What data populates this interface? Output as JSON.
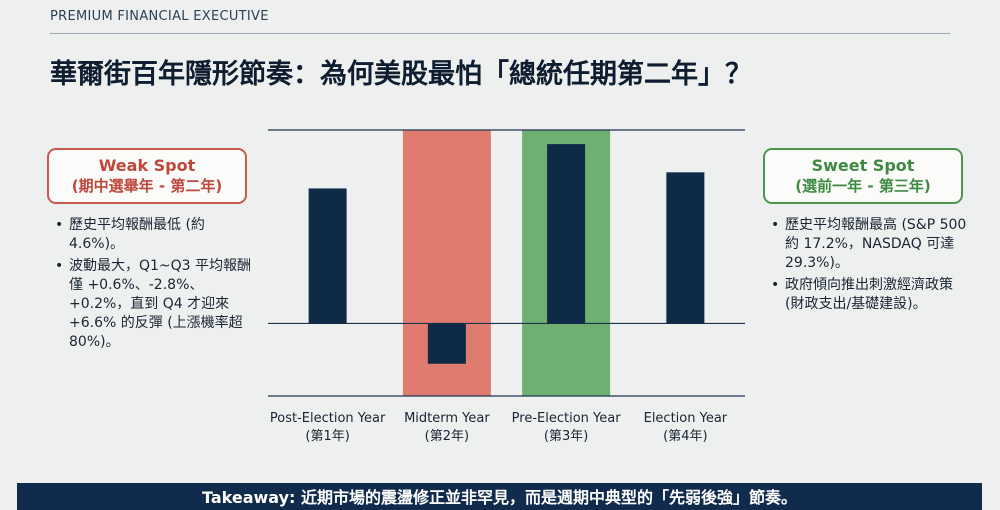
{
  "header": {
    "brand": "PREMIUM FINANCIAL EXECUTIVE",
    "title": "華爾街百年隱形節奏：為何美股最怕「總統任期第二年」？"
  },
  "weak_spot": {
    "title": "Weak Spot",
    "subtitle": "(期中選舉年 - 第二年)",
    "accent": "#c85a4f",
    "bullets": [
      "歷史平均報酬最低 (約 4.6%)。",
      "波動最大，Q1~Q3 平均報酬僅 +0.6%、-2.8%、+0.2%，直到 Q4 才迎來 +6.6% 的反彈 (上漲機率超 80%)。"
    ]
  },
  "sweet_spot": {
    "title": "Sweet Spot",
    "subtitle": "(選前一年 - 第三年)",
    "accent": "#4d9650",
    "bullets": [
      "歷史平均報酬最高 (S&P 500 約 17.2%，NASDAQ 可達 29.3%)。",
      "政府傾向推出刺激經濟政策 (財政支出/基礎建設)。"
    ]
  },
  "chart_data": {
    "type": "bar",
    "categories": [
      {
        "line1": "Post-Election Year",
        "line2": "(第1年)"
      },
      {
        "line1": "Midterm Year",
        "line2": "(第2年)"
      },
      {
        "line1": "Pre-Election Year",
        "line2": "(第3年)"
      },
      {
        "line1": "Election Year",
        "line2": "(第4年)"
      }
    ],
    "values": [
      6.7,
      -2.0,
      8.9,
      7.5
    ],
    "ylim": [
      -3.6,
      9.6
    ],
    "bar_color": "#0f2a47",
    "highlights": [
      {
        "index": 1,
        "color": "#e07b70"
      },
      {
        "index": 2,
        "color": "#6fb072"
      }
    ]
  },
  "takeaway": {
    "label": "Takeaway:",
    "text": " 近期市場的震盪修正並非罕見，而是週期中典型的「先弱後強」節奏。"
  }
}
